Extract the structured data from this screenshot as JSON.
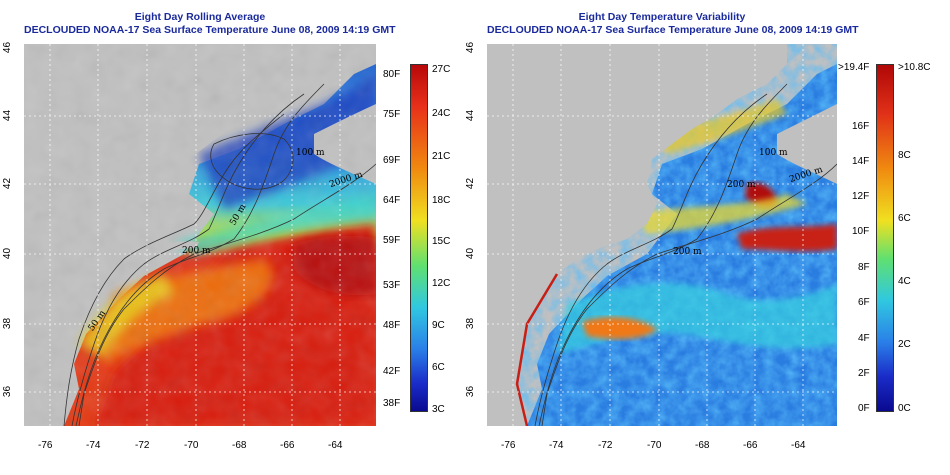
{
  "left_panel": {
    "title_line1": "Eight Day Rolling Average",
    "title_line2": "DECLOUDED NOAA-17 Sea Surface Temperature June 08, 2009 14:19 GMT",
    "lat_ticks": [
      "46",
      "44",
      "42",
      "40",
      "38",
      "36"
    ],
    "lon_ticks": [
      "-76",
      "-74",
      "-72",
      "-70",
      "-68",
      "-66",
      "-64"
    ],
    "contours": [
      "2000 m",
      "200 m",
      "50 m",
      "100 m",
      "50 m"
    ],
    "colorbar_f": [
      "80F",
      "75F",
      "69F",
      "64F",
      "59F",
      "53F",
      "48F",
      "42F",
      "38F"
    ],
    "colorbar_c": [
      "27C",
      "24C",
      "21C",
      "18C",
      "15C",
      "12C",
      "9C",
      "6C",
      "3C"
    ]
  },
  "right_panel": {
    "title_line1": "Eight Day Temperature Variability",
    "title_line2": "DECLOUDED NOAA-17 Sea Surface Temperature June 08, 2009 14:19 GMT",
    "lat_ticks": [
      "46",
      "44",
      "42",
      "40",
      "38",
      "36"
    ],
    "lon_ticks": [
      "-76",
      "-74",
      "-72",
      "-70",
      "-68",
      "-66",
      "-64"
    ],
    "contours": [
      "2000 m",
      "200 m",
      "100 m",
      "200 m"
    ],
    "colorbar_f": [
      ">19.4F",
      "16F",
      "14F",
      "12F",
      "10F",
      "8F",
      "6F",
      "4F",
      "2F",
      "0F"
    ],
    "colorbar_c": [
      ">10.8C",
      "8C",
      "6C",
      "4C",
      "2C",
      "0C"
    ]
  },
  "colors": {
    "title": "#1a2a9c",
    "land": "#c0c0c0",
    "background": "#ffffff"
  }
}
